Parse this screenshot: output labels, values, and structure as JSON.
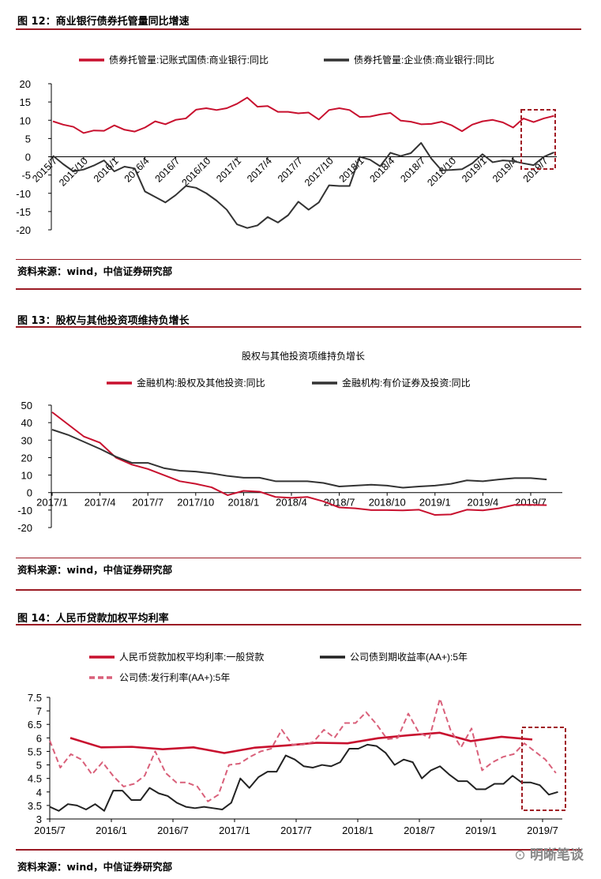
{
  "figures": [
    {
      "title": "图 12：商业银行债券托管量同比增速",
      "source": "资料来源：wind，中信证券研究部"
    },
    {
      "title": "图 13：股权与其他投资项维持负增长",
      "source": "资料来源：wind，中信证券研究部"
    },
    {
      "title": "图 14：人民币贷款加权平均利率",
      "source": "资料来源：wind，中信证券研究部"
    }
  ],
  "watermark": "明晰笔谈",
  "chart_data": [
    {
      "type": "line",
      "title": "",
      "ylim": [
        -20,
        20
      ],
      "yticks": [
        20,
        15,
        10,
        5,
        0,
        -5,
        -10,
        -15,
        -20
      ],
      "x_start": "2015/7",
      "frequency": "monthly",
      "xticks": [
        "2015/7",
        "2015/10",
        "2016/1",
        "2016/4",
        "2016/7",
        "2016/10",
        "2017/1",
        "2017/4",
        "2017/7",
        "2017/10",
        "2018/1",
        "2018/4",
        "2018/7",
        "2018/10",
        "2019/1",
        "2019/4",
        "2019/7"
      ],
      "series": [
        {
          "name": "债券托管量:记账式国债:商业银行:同比",
          "color": "#c8102e",
          "values": [
            9.7,
            8.8,
            8.2,
            6.5,
            7.2,
            7.1,
            8.6,
            7.4,
            6.9,
            8.0,
            9.7,
            8.9,
            10.1,
            10.5,
            12.9,
            13.3,
            12.8,
            13.3,
            14.5,
            16.2,
            13.7,
            13.9,
            12.3,
            12.3,
            11.9,
            12.1,
            10.2,
            12.8,
            13.3,
            12.8,
            10.9,
            11.0,
            11.6,
            12.0,
            9.9,
            9.6,
            8.9,
            9.0,
            9.6,
            8.6,
            7.0,
            8.8,
            9.7,
            10.1,
            9.4,
            8.0,
            10.5,
            9.5,
            10.5,
            11.2
          ]
        },
        {
          "name": "债券托管量:企业债:商业银行:同比",
          "color": "#333333",
          "values": [
            0.3,
            -2,
            -4,
            -3.5,
            -2.4,
            -1,
            -4,
            -2.7,
            -3.2,
            -9.5,
            -11,
            -12.5,
            -10.5,
            -8,
            -8.5,
            -10,
            -12,
            -14.5,
            -18.5,
            -19.5,
            -18.8,
            -16.5,
            -18,
            -16,
            -12.3,
            -14.5,
            -12.5,
            -7.8,
            -8,
            -8,
            0,
            -0.8,
            -2.6,
            1.1,
            0.2,
            1,
            3.8,
            -0.5,
            -3.7,
            -3.6,
            -3.4,
            -1.8,
            0.7,
            -1.5,
            -1,
            -1.2,
            -1.8,
            -2.3,
            0,
            1.2
          ]
        }
      ]
    },
    {
      "type": "line",
      "title": "股权与其他投资项维持负增长",
      "ylim": [
        -20,
        50
      ],
      "yticks": [
        50,
        40,
        30,
        20,
        10,
        0,
        -10,
        -20
      ],
      "x_start": "2017/1",
      "frequency": "monthly",
      "xticks": [
        "2017/1",
        "2017/4",
        "2017/7",
        "2017/10",
        "2018/1",
        "2018/4",
        "2018/7",
        "2018/10",
        "2019/1",
        "2019/4",
        "2019/7"
      ],
      "series": [
        {
          "name": "金融机构:股权及其他投资:同比",
          "color": "#c8102e",
          "values": [
            46,
            39,
            32,
            28.5,
            20,
            16,
            13.5,
            10,
            6.5,
            5,
            3,
            -1.5,
            1,
            0.5,
            -2.5,
            -3,
            -2.5,
            -5,
            -8.5,
            -9,
            -10,
            -10,
            -10.2,
            -9.8,
            -12.8,
            -12.5,
            -9.8,
            -10.2,
            -9,
            -7,
            -7,
            -7.2
          ]
        },
        {
          "name": "金融机构:有价证券及投资:同比",
          "color": "#333333",
          "values": [
            36,
            33,
            29,
            25,
            20.5,
            17,
            17,
            14,
            12.5,
            12,
            11,
            9.5,
            8.5,
            8.5,
            6.5,
            6.5,
            6.5,
            5.5,
            3.5,
            4,
            4.5,
            4,
            2.8,
            3.5,
            4,
            5,
            7,
            6.5,
            7.5,
            8.3,
            8.3,
            7.5
          ]
        }
      ]
    },
    {
      "type": "line",
      "title": "",
      "ylim": [
        3,
        7.5
      ],
      "yticks": [
        7.5,
        7,
        6.5,
        6,
        5.5,
        5,
        4.5,
        4,
        3.5,
        3
      ],
      "x_start": "2015/7",
      "frequency": "monthly",
      "xticks": [
        "2015/7",
        "2016/1",
        "2016/7",
        "2017/1",
        "2017/7",
        "2018/1",
        "2018/7",
        "2019/1",
        "2019/7"
      ],
      "series": [
        {
          "name": "人民币贷款加权平均利率:一般贷款",
          "color": "#c8102e",
          "style": "solid",
          "month_offsets": [
            2,
            5,
            8,
            11,
            14,
            17,
            20,
            23,
            26,
            29,
            32,
            35,
            38,
            41,
            44,
            47
          ],
          "values": [
            6.0,
            5.65,
            5.67,
            5.58,
            5.65,
            5.44,
            5.64,
            5.72,
            5.82,
            5.8,
            5.99,
            6.1,
            6.19,
            5.88,
            6.04,
            5.94
          ]
        },
        {
          "name": "公司债到期收益率(AA+):5年",
          "color": "#222222",
          "style": "solid",
          "span_months": [
            0,
            49.5
          ],
          "values": [
            3.45,
            3.3,
            3.55,
            3.5,
            3.35,
            3.55,
            3.3,
            4.05,
            4.05,
            3.7,
            3.7,
            4.15,
            3.95,
            3.85,
            3.6,
            3.45,
            3.4,
            3.45,
            3.4,
            3.35,
            3.6,
            4.5,
            4.15,
            4.55,
            4.75,
            4.75,
            5.35,
            5.2,
            4.95,
            4.9,
            5.0,
            4.95,
            5.1,
            5.6,
            5.6,
            5.75,
            5.7,
            5.45,
            5.0,
            5.2,
            5.1,
            4.5,
            4.8,
            4.95,
            4.65,
            4.4,
            4.4,
            4.1,
            4.1,
            4.3,
            4.3,
            4.6,
            4.35,
            4.35,
            4.25,
            3.9,
            4.0
          ]
        },
        {
          "name": "公司债:发行利率(AA+):5年",
          "color": "#d9607a",
          "style": "dashed",
          "span_months": [
            0,
            49.3
          ],
          "values": [
            5.9,
            4.9,
            5.4,
            5.2,
            4.65,
            5.1,
            4.6,
            4.2,
            4.3,
            4.6,
            5.5,
            4.7,
            4.35,
            4.35,
            4.2,
            3.65,
            3.9,
            5.0,
            5.05,
            5.3,
            5.5,
            5.6,
            6.3,
            5.75,
            5.75,
            5.85,
            6.3,
            6.0,
            6.55,
            6.55,
            6.95,
            6.5,
            5.95,
            6.0,
            6.9,
            6.2,
            6.0,
            7.45,
            6.3,
            5.65,
            6.35,
            4.8,
            5.1,
            5.3,
            5.4,
            5.8,
            5.5,
            5.2,
            4.7
          ]
        }
      ]
    }
  ]
}
